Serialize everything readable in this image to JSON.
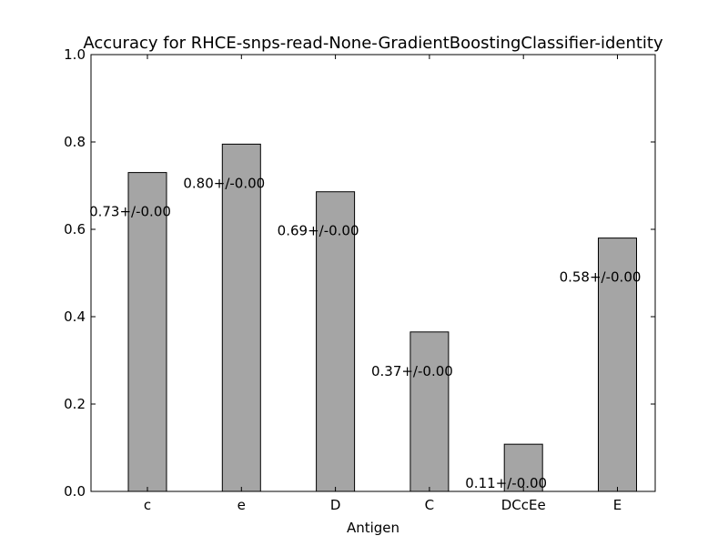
{
  "chart_data": {
    "type": "bar",
    "title": "Accuracy for RHCE-snps-read-None-GradientBoostingClassifier-identity",
    "xlabel": "Antigen",
    "ylabel": "",
    "categories": [
      "c",
      "e",
      "D",
      "C",
      "DCcEe",
      "E"
    ],
    "values": [
      0.73,
      0.795,
      0.686,
      0.365,
      0.108,
      0.58
    ],
    "data_labels": [
      "0.73+/-0.00",
      "0.80+/-0.00",
      "0.69+/-0.00",
      "0.37+/-0.00",
      "0.11+/-0.00",
      "0.58+/-0.00"
    ],
    "ylim": [
      0,
      1.0
    ],
    "yticks": [
      0.0,
      0.2,
      0.4,
      0.6,
      0.8,
      1.0
    ],
    "ytick_labels": [
      "0.0",
      "0.2",
      "0.4",
      "0.6",
      "0.8",
      "1.0"
    ],
    "grid": false,
    "legend": "none",
    "colors": {
      "bar_fill": "#a5a5a5",
      "bar_edge": "#000000",
      "axes": "#000000",
      "background": "#ffffff"
    }
  }
}
